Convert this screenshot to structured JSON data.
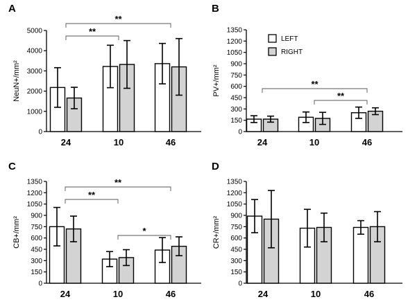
{
  "colors": {
    "left": "#ffffff",
    "right": "#d3d3d3",
    "stroke": "#000000"
  },
  "legend": {
    "left_label": "LEFT",
    "right_label": "RIGHT"
  },
  "chart_data": [
    {
      "type": "bar",
      "panel": "A",
      "ylabel": "NeuN+/mm²",
      "ylim": [
        0,
        5000
      ],
      "yticks": [
        "0",
        "1000",
        "2000",
        "3000",
        "4000",
        "5000"
      ],
      "categories": [
        "24",
        "10",
        "46"
      ],
      "series": [
        {
          "name": "LEFT",
          "values": [
            2180,
            3220,
            3360
          ],
          "errors": [
            980,
            1050,
            1000
          ]
        },
        {
          "name": "RIGHT",
          "values": [
            1660,
            3320,
            3200
          ],
          "errors": [
            530,
            1180,
            1400
          ]
        }
      ],
      "annotations": [
        {
          "from": 0,
          "to": 1,
          "label": "**"
        },
        {
          "from": 0,
          "to": 2,
          "label": "**"
        }
      ]
    },
    {
      "type": "bar",
      "panel": "B",
      "ylabel": "PV+/mm²",
      "ylim": [
        0,
        1350
      ],
      "yticks": [
        "0",
        "150",
        "300",
        "450",
        "600",
        "750",
        "900",
        "1050",
        "1200",
        "1350"
      ],
      "categories": [
        "24",
        "10",
        "46"
      ],
      "series": [
        {
          "name": "LEFT",
          "values": [
            165,
            190,
            250
          ],
          "errors": [
            45,
            70,
            75
          ]
        },
        {
          "name": "RIGHT",
          "values": [
            165,
            175,
            270
          ],
          "errors": [
            40,
            80,
            45
          ]
        }
      ],
      "annotations": [
        {
          "from": 1,
          "to": 2,
          "label": "**"
        },
        {
          "from": 0,
          "to": 2,
          "label": "**"
        }
      ]
    },
    {
      "type": "bar",
      "panel": "C",
      "ylabel": "CB+/mm²",
      "ylim": [
        0,
        1350
      ],
      "yticks": [
        "0",
        "150",
        "300",
        "450",
        "600",
        "750",
        "900",
        "1050",
        "1200",
        "1350"
      ],
      "categories": [
        "24",
        "10",
        "46"
      ],
      "series": [
        {
          "name": "LEFT",
          "values": [
            750,
            320,
            440
          ],
          "errors": [
            255,
            100,
            165
          ]
        },
        {
          "name": "RIGHT",
          "values": [
            720,
            340,
            490
          ],
          "errors": [
            170,
            105,
            125
          ]
        }
      ],
      "annotations": [
        {
          "from": 0,
          "to": 1,
          "label": "**"
        },
        {
          "from": 0,
          "to": 2,
          "label": "**"
        },
        {
          "from": 1,
          "to": 2,
          "label": "*"
        }
      ]
    },
    {
      "type": "bar",
      "panel": "D",
      "ylabel": "CR+/mm²",
      "ylim": [
        0,
        1350
      ],
      "yticks": [
        "0",
        "150",
        "300",
        "450",
        "600",
        "750",
        "900",
        "1050",
        "1200",
        "1350"
      ],
      "categories": [
        "24",
        "10",
        "46"
      ],
      "series": [
        {
          "name": "LEFT",
          "values": [
            890,
            730,
            740
          ],
          "errors": [
            220,
            250,
            90
          ]
        },
        {
          "name": "RIGHT",
          "values": [
            850,
            740,
            750
          ],
          "errors": [
            380,
            190,
            200
          ]
        }
      ],
      "annotations": []
    }
  ]
}
